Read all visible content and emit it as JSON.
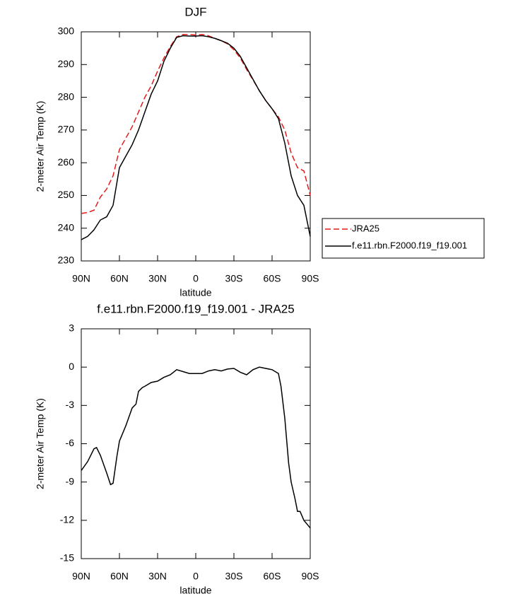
{
  "chart_data": [
    {
      "type": "line",
      "title": "DJF",
      "xlabel": "latitude",
      "ylabel": "2-meter Air Temp (K)",
      "x": [
        90,
        85,
        80,
        75,
        70,
        65,
        60,
        55,
        50,
        45,
        40,
        35,
        30,
        25,
        20,
        15,
        10,
        5,
        0,
        -5,
        -10,
        -15,
        -20,
        -25,
        -30,
        -35,
        -40,
        -45,
        -50,
        -55,
        -60,
        -65,
        -70,
        -75,
        -80,
        -85,
        -90
      ],
      "series": [
        {
          "name": "JRA25",
          "color": "#e41a1c",
          "linestyle": "dashed",
          "values": [
            244.5,
            244.8,
            245.5,
            249.5,
            252,
            256,
            264,
            267.5,
            271,
            275.5,
            280,
            283.5,
            288,
            292,
            295.5,
            298.5,
            299.2,
            299.2,
            299,
            299.2,
            298.8,
            298,
            297.3,
            296.3,
            294.5,
            292,
            288.5,
            285.3,
            282,
            279,
            276.5,
            274,
            270,
            263,
            258.5,
            257.5,
            250
          ]
        },
        {
          "name": "f.e11.rbn.F2000.f19_f19.001",
          "color": "#000000",
          "linestyle": "solid",
          "values": [
            236.5,
            237.5,
            239.5,
            242.5,
            243.5,
            247,
            258.5,
            262,
            265.5,
            270,
            275.5,
            281,
            285,
            291,
            295,
            298.3,
            298.8,
            298.7,
            298.7,
            298.8,
            298.5,
            298,
            297.3,
            296.5,
            295,
            292.5,
            289,
            285.5,
            282,
            279,
            276.5,
            273.5,
            266,
            256,
            250,
            247,
            237.5
          ]
        }
      ],
      "xlim": [
        90,
        -90
      ],
      "xticks": [
        {
          "value": 90,
          "label": "90N"
        },
        {
          "value": 60,
          "label": "60N"
        },
        {
          "value": 30,
          "label": "30N"
        },
        0,
        {
          "value": -30,
          "label": "30S"
        },
        {
          "value": -60,
          "label": "60S"
        },
        {
          "value": -90,
          "label": "90S"
        }
      ],
      "ylim": [
        230,
        300
      ],
      "yticks": [
        230,
        240,
        250,
        260,
        270,
        280,
        290,
        300
      ],
      "legend": "right"
    },
    {
      "type": "line",
      "title": "f.e11.rbn.F2000.f19_f19.001 - JRA25",
      "xlabel": "latitude",
      "ylabel": "2-meter Air Temp (K)",
      "x": [
        90,
        85,
        80,
        78,
        75,
        70,
        67,
        65,
        62,
        60,
        55,
        50,
        47,
        45,
        42,
        40,
        35,
        30,
        25,
        20,
        15,
        10,
        5,
        0,
        -5,
        -10,
        -15,
        -20,
        -25,
        -30,
        -35,
        -40,
        -45,
        -50,
        -55,
        -60,
        -65,
        -67,
        -70,
        -73,
        -75,
        -78,
        -80,
        -82,
        -85,
        -90
      ],
      "series": [
        {
          "color": "#000000",
          "linestyle": "solid",
          "values": [
            -8.1,
            -7.4,
            -6.4,
            -6.3,
            -6.9,
            -8.3,
            -9.2,
            -9.1,
            -7,
            -5.8,
            -4.6,
            -3.2,
            -2.9,
            -1.9,
            -1.6,
            -1.5,
            -1.2,
            -1.1,
            -0.8,
            -0.6,
            -0.2,
            -0.35,
            -0.5,
            -0.5,
            -0.5,
            -0.3,
            -0.2,
            -0.3,
            -0.15,
            -0.1,
            -0.4,
            -0.6,
            -0.2,
            0,
            -0.1,
            -0.2,
            -0.5,
            -1.5,
            -4,
            -7.5,
            -9,
            -10.3,
            -11.3,
            -11.3,
            -12,
            -12.6
          ]
        }
      ],
      "xlim": [
        90,
        -90
      ],
      "xticks": [
        {
          "value": 90,
          "label": "90N"
        },
        {
          "value": 60,
          "label": "60N"
        },
        {
          "value": 30,
          "label": "30N"
        },
        0,
        {
          "value": -30,
          "label": "30S"
        },
        {
          "value": -60,
          "label": "60S"
        },
        {
          "value": -90,
          "label": "90S"
        }
      ],
      "ylim": [
        -15,
        3
      ],
      "yticks": [
        -15,
        -12,
        -9,
        -6,
        -3,
        0,
        3
      ]
    }
  ]
}
